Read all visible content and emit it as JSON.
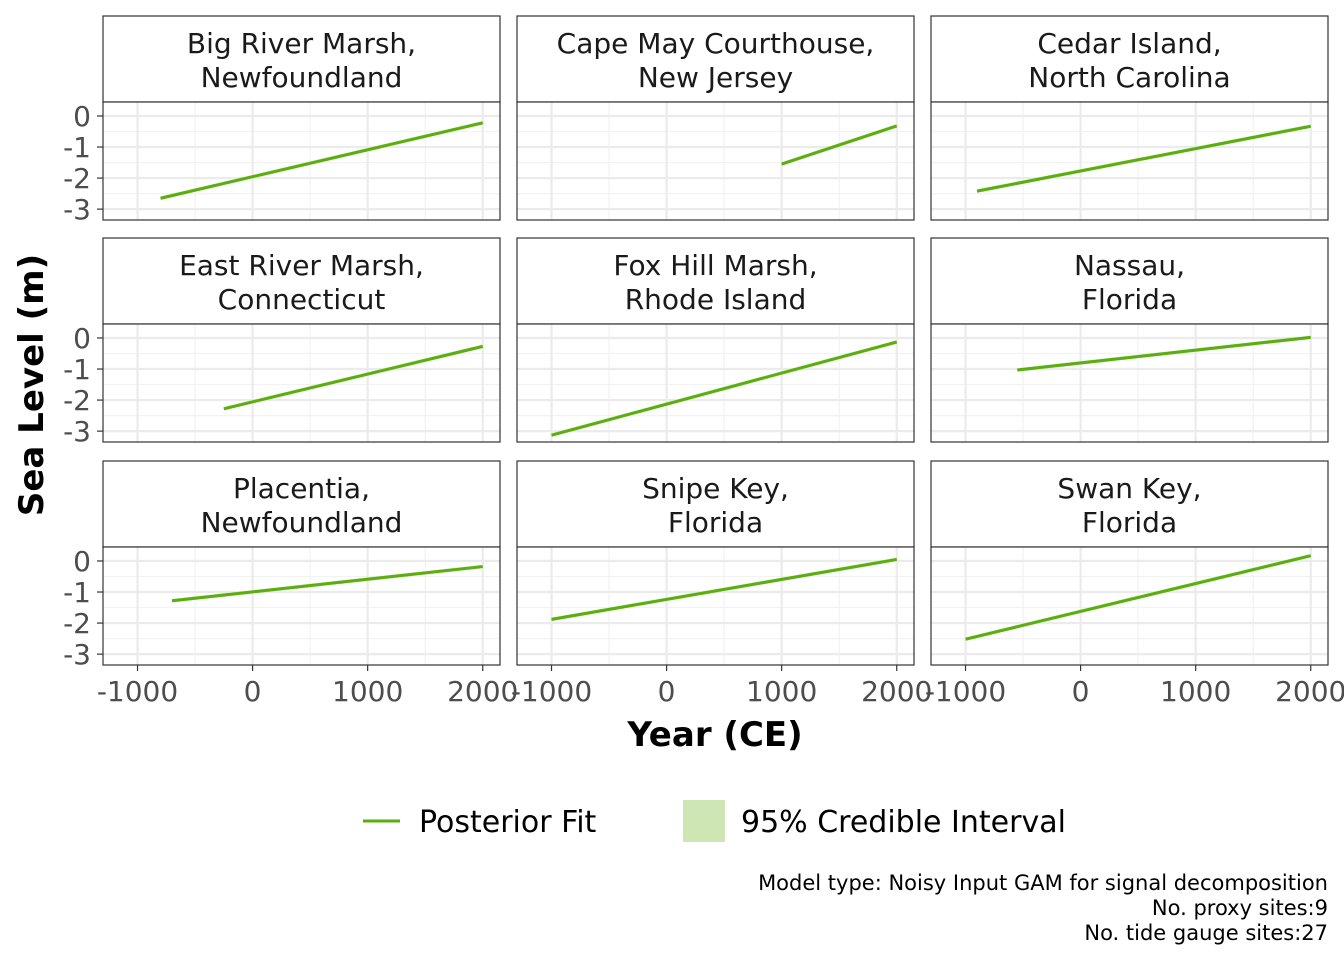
{
  "chart_data": {
    "type": "line",
    "xlabel": "Year (CE)",
    "ylabel": "Sea Level (m)",
    "xlim": [
      -1300,
      2150
    ],
    "ylim": [
      -3.35,
      0.45
    ],
    "x_ticks": [
      -1000,
      0,
      1000,
      2000
    ],
    "x_tick_labels": [
      "-1000",
      "0",
      "1000",
      "2000"
    ],
    "y_ticks": [
      0,
      -1,
      -2,
      -3
    ],
    "y_tick_labels": [
      "0",
      "-1",
      "-2",
      "-3"
    ],
    "grid": true,
    "layout": "3x3 facet grid",
    "colors": {
      "fit": "#5aae0e",
      "interval": "#cde6b4"
    },
    "legend": {
      "position": "bottom",
      "items": [
        {
          "label": "Posterior Fit",
          "kind": "line"
        },
        {
          "label": "95% Credible Interval",
          "kind": "fill"
        }
      ]
    },
    "facets": [
      {
        "title": [
          "Big River Marsh,",
          "Newfoundland"
        ],
        "x": [
          -800,
          2000
        ],
        "y": [
          -2.65,
          -0.22
        ]
      },
      {
        "title": [
          "Cape May Courthouse,",
          "New Jersey"
        ],
        "x": [
          1000,
          2000
        ],
        "y": [
          -1.55,
          -0.32
        ]
      },
      {
        "title": [
          "Cedar Island,",
          "North Carolina"
        ],
        "x": [
          -900,
          2000
        ],
        "y": [
          -2.42,
          -0.33
        ]
      },
      {
        "title": [
          "East River Marsh,",
          "Connecticut"
        ],
        "x": [
          -250,
          2000
        ],
        "y": [
          -2.28,
          -0.27
        ]
      },
      {
        "title": [
          "Fox Hill Marsh,",
          "Rhode Island"
        ],
        "x": [
          -1000,
          2000
        ],
        "y": [
          -3.13,
          -0.13
        ]
      },
      {
        "title": [
          "Nassau,",
          "Florida"
        ],
        "x": [
          -550,
          2000
        ],
        "y": [
          -1.03,
          0.02
        ]
      },
      {
        "title": [
          "Placentia,",
          "Newfoundland"
        ],
        "x": [
          -700,
          2000
        ],
        "y": [
          -1.28,
          -0.18
        ]
      },
      {
        "title": [
          "Snipe Key,",
          "Florida"
        ],
        "x": [
          -1000,
          2000
        ],
        "y": [
          -1.88,
          0.05
        ]
      },
      {
        "title": [
          "Swan Key,",
          "Florida"
        ],
        "x": [
          -1000,
          2000
        ],
        "y": [
          -2.52,
          0.17
        ]
      }
    ],
    "caption": [
      "Model type: Noisy Input GAM for signal decomposition",
      "No. proxy sites:9",
      "No. tide gauge sites:27"
    ]
  }
}
